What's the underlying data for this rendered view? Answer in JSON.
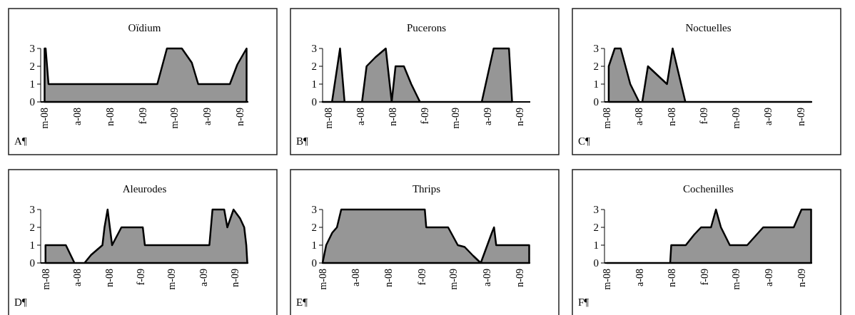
{
  "chart_data": [
    {
      "type": "area",
      "title": "Oïdium",
      "annotations": [
        "A¶"
      ],
      "color": "#969696",
      "xlim": [
        "2008-04-20",
        "2009-11-25"
      ],
      "ylim": [
        0,
        3
      ],
      "yticks": [
        0,
        1,
        2,
        3
      ],
      "xticks": [
        {
          "value": "2008-05",
          "label": "m-08"
        },
        {
          "value": "2008-08",
          "label": "a-08"
        },
        {
          "value": "2008-11",
          "label": "n-08"
        },
        {
          "value": "2009-02",
          "label": "f-09"
        },
        {
          "value": "2009-05",
          "label": "m-09"
        },
        {
          "value": "2009-08",
          "label": "a-09"
        },
        {
          "value": "2009-11",
          "label": "n-09"
        }
      ],
      "x": [
        "2008-05-01",
        "2008-05-04",
        "2008-05-12",
        "2009-03-14",
        "2009-04-10",
        "2009-05-22",
        "2009-06-19",
        "2009-07-07",
        "2009-10-04",
        "2009-10-25",
        "2009-11-20"
      ],
      "values": [
        3,
        3,
        1,
        1,
        3,
        3,
        2.2,
        1,
        1,
        2.1,
        3
      ]
    },
    {
      "type": "area",
      "title": "Pucerons",
      "annotations": [
        "B¶"
      ],
      "color": "#969696",
      "xlim": [
        "2008-04-15",
        "2009-12-01"
      ],
      "ylim": [
        0,
        3
      ],
      "yticks": [
        0,
        1,
        2,
        3
      ],
      "xticks": [
        {
          "value": "2008-05",
          "label": "m-08"
        },
        {
          "value": "2008-08",
          "label": "a-08"
        },
        {
          "value": "2008-11",
          "label": "n-08"
        },
        {
          "value": "2009-02",
          "label": "f-09"
        },
        {
          "value": "2009-05",
          "label": "m-09"
        },
        {
          "value": "2009-08",
          "label": "a-09"
        },
        {
          "value": "2009-11",
          "label": "n-09"
        }
      ],
      "x": [
        "2008-04-15",
        "2008-05-12",
        "2008-06-04",
        "2008-06-17",
        "2008-08-06",
        "2008-08-19",
        "2008-09-13",
        "2008-10-13",
        "2008-10-30",
        "2008-11-10",
        "2008-12-04",
        "2008-12-25",
        "2009-01-19",
        "2009-07-15",
        "2009-08-18",
        "2009-10-01",
        "2009-10-10"
      ],
      "values": [
        0,
        0,
        3,
        0,
        0,
        2,
        2.5,
        3,
        0,
        2,
        2,
        1,
        0,
        0,
        3,
        3,
        0
      ]
    },
    {
      "type": "area",
      "title": "Noctuelles",
      "annotations": [
        "C¶"
      ],
      "color": "#969696",
      "xlim": [
        "2008-04-25",
        "2009-12-04"
      ],
      "ylim": [
        0,
        3
      ],
      "yticks": [
        0,
        1,
        2,
        3
      ],
      "xticks": [
        {
          "value": "2008-05",
          "label": "m-08"
        },
        {
          "value": "2008-08",
          "label": "a-08"
        },
        {
          "value": "2008-11",
          "label": "n-08"
        },
        {
          "value": "2009-02",
          "label": "f-09"
        },
        {
          "value": "2009-05",
          "label": "m-09"
        },
        {
          "value": "2009-08",
          "label": "a-09"
        },
        {
          "value": "2009-11",
          "label": "n-09"
        }
      ],
      "x": [
        "2008-05-07",
        "2008-05-24",
        "2008-06-10",
        "2008-07-07",
        "2008-08-01",
        "2008-08-10",
        "2008-08-26",
        "2008-09-22",
        "2008-10-19",
        "2008-11-04",
        "2008-12-10",
        "2009-12-01"
      ],
      "values": [
        2,
        3,
        3,
        1,
        0,
        0,
        2,
        1.5,
        1,
        3,
        0,
        0
      ]
    },
    {
      "type": "area",
      "title": "Aleurodes",
      "annotations": [
        "D¶"
      ],
      "color": "#969696",
      "xlim": [
        "2008-04-17",
        "2009-12-10"
      ],
      "ylim": [
        0,
        3
      ],
      "yticks": [
        0,
        1,
        2,
        3
      ],
      "xticks": [
        {
          "value": "2008-05",
          "label": "m-08"
        },
        {
          "value": "2008-08",
          "label": "a-08"
        },
        {
          "value": "2008-11",
          "label": "n-08"
        },
        {
          "value": "2009-02",
          "label": "f-09"
        },
        {
          "value": "2009-05",
          "label": "m-09"
        },
        {
          "value": "2009-08",
          "label": "a-09"
        },
        {
          "value": "2009-11",
          "label": "n-09"
        }
      ],
      "x": [
        "2008-05-01",
        "2008-06-29",
        "2008-07-24",
        "2008-08-22",
        "2008-09-10",
        "2008-10-13",
        "2008-10-19",
        "2008-10-28",
        "2008-11-10",
        "2008-12-07",
        "2009-02-07",
        "2009-02-13",
        "2009-08-19",
        "2009-08-28",
        "2009-10-01",
        "2009-10-10",
        "2009-10-28",
        "2009-11-16",
        "2009-11-28",
        "2009-12-04",
        "2009-12-07"
      ],
      "values": [
        1,
        1,
        0,
        0,
        0.45,
        1,
        2,
        3,
        1,
        2,
        2,
        1,
        1,
        3,
        3,
        2,
        3,
        2.5,
        2,
        1,
        0
      ]
    },
    {
      "type": "area",
      "title": "Thrips",
      "annotations": [
        "E¶"
      ],
      "color": "#969696",
      "xlim": [
        "2008-05-01",
        "2009-12-01"
      ],
      "ylim": [
        0,
        3
      ],
      "yticks": [
        0,
        1,
        2,
        3
      ],
      "xticks": [
        {
          "value": "2008-05",
          "label": "m-08"
        },
        {
          "value": "2008-08",
          "label": "a-08"
        },
        {
          "value": "2008-11",
          "label": "n-08"
        },
        {
          "value": "2009-02",
          "label": "f-09"
        },
        {
          "value": "2009-05",
          "label": "m-09"
        },
        {
          "value": "2009-08",
          "label": "a-09"
        },
        {
          "value": "2009-11",
          "label": "n-09"
        }
      ],
      "x": [
        "2008-05-01",
        "2008-05-11",
        "2008-05-28",
        "2008-06-10",
        "2008-06-22",
        "2009-02-10",
        "2009-02-14",
        "2009-04-16",
        "2009-05-13",
        "2009-06-01",
        "2009-06-25",
        "2009-07-16",
        "2009-08-16",
        "2009-08-22",
        "2009-08-28",
        "2009-11-28"
      ],
      "values": [
        0,
        1,
        1.7,
        2,
        3,
        3,
        2,
        2,
        1,
        0.9,
        0.4,
        0,
        1.7,
        2,
        1,
        1
      ]
    },
    {
      "type": "area",
      "title": "Cochenilles",
      "annotations": [
        "F¶"
      ],
      "color": "#969696",
      "xlim": [
        "2008-04-25",
        "2009-12-01"
      ],
      "ylim": [
        0,
        3
      ],
      "yticks": [
        0,
        1,
        2,
        3
      ],
      "xticks": [
        {
          "value": "2008-05",
          "label": "m-08"
        },
        {
          "value": "2008-08",
          "label": "a-08"
        },
        {
          "value": "2008-11",
          "label": "n-08"
        },
        {
          "value": "2009-02",
          "label": "f-09"
        },
        {
          "value": "2009-05",
          "label": "m-09"
        },
        {
          "value": "2009-08",
          "label": "a-09"
        },
        {
          "value": "2009-11",
          "label": "n-09"
        }
      ],
      "x": [
        "2008-05-01",
        "2008-10-27",
        "2008-10-30",
        "2008-12-10",
        "2009-01-03",
        "2009-01-22",
        "2009-02-19",
        "2009-03-05",
        "2009-03-19",
        "2009-04-13",
        "2009-06-01",
        "2009-07-16",
        "2009-10-10",
        "2009-11-01",
        "2009-11-28"
      ],
      "values": [
        0,
        0,
        1,
        1,
        1.6,
        2,
        2,
        3,
        2,
        1,
        1,
        2,
        2,
        3,
        3
      ]
    }
  ]
}
